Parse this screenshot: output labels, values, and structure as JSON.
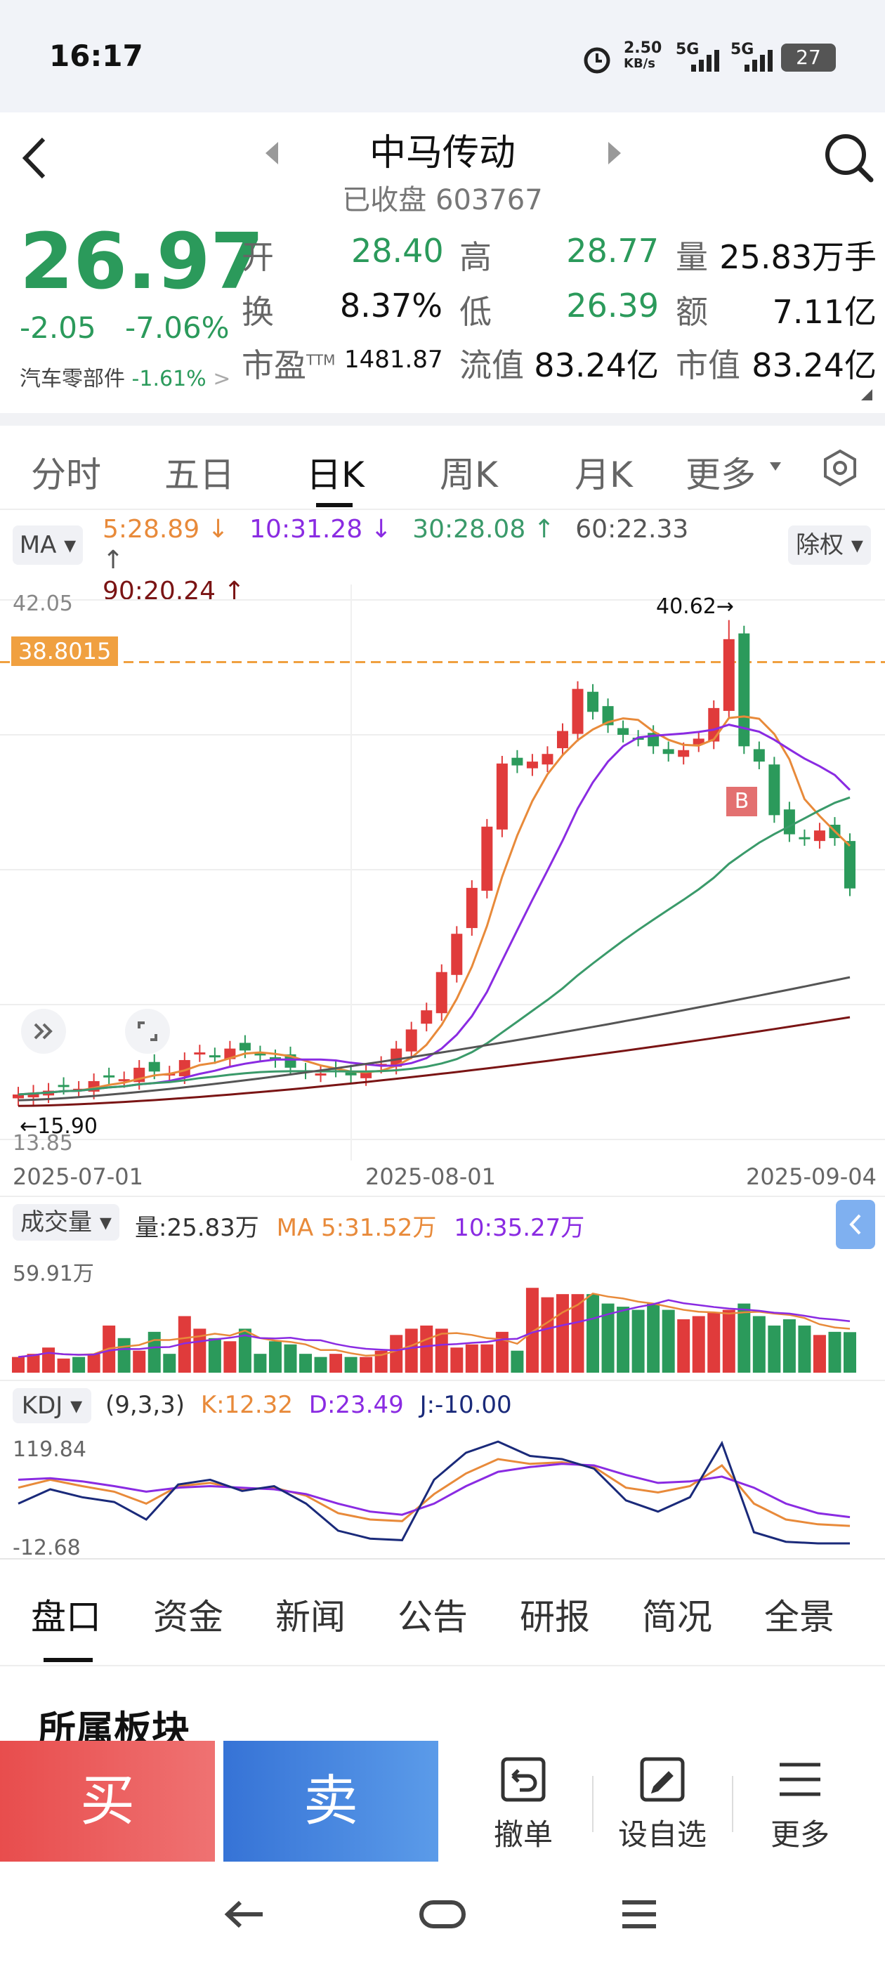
{
  "status": {
    "time": "16:17",
    "speed": "2.50",
    "speed_unit": "KB/s",
    "net1": "5G",
    "net2": "5G",
    "battery": "27"
  },
  "header": {
    "title": "中马传动",
    "state": "已收盘",
    "code": "603767"
  },
  "quote": {
    "price": "26.97",
    "change": "-2.05",
    "change_pct": "-7.06%",
    "sector": "汽车零部件",
    "sector_pct": "-1.61%",
    "open_label": "开",
    "open": "28.40",
    "high_label": "高",
    "high": "28.77",
    "vol_label": "量",
    "vol": "25.83万手",
    "turn_label": "换",
    "turn": "8.37%",
    "low_label": "低",
    "low": "26.39",
    "amt_label": "额",
    "amt": "7.11亿",
    "pe_label": "市盈",
    "pe_sup": "TTM",
    "pe": "1481.87",
    "float_label": "流值",
    "float": "83.24亿",
    "cap_label": "市值",
    "cap": "83.24亿"
  },
  "tabs": [
    "分时",
    "五日",
    "日K",
    "周K",
    "月K",
    "更多"
  ],
  "active_tab": "日K",
  "ma_bar": {
    "button": "MA",
    "ma5": "5:28.89 ↓",
    "ma10": "10:31.28 ↓",
    "ma30": "30:28.08 ↑",
    "ma60": "60:22.33 ↑",
    "ma90": "90:20.24 ↑",
    "adjust": "除权"
  },
  "colors": {
    "up": "#e03b3b",
    "down": "#2b9a5b",
    "ma5": "#e88a3a",
    "ma10": "#8a2be2",
    "ma30": "#3a9a6a",
    "ma60": "#555555",
    "ma90": "#7a1414",
    "accent": "#f0a040"
  },
  "kline_labels": {
    "top": "42.05",
    "bottom": "13.85",
    "marker": "38.8015",
    "max": "40.62→",
    "min": "←15.90",
    "b_mark": "B",
    "date1": "2025-07-01",
    "date2": "2025-08-01",
    "date3": "2025-09-04"
  },
  "volume": {
    "button": "成交量",
    "vol": "量:25.83万",
    "ma5": "MA 5:31.52万",
    "ma10": "10:35.27万",
    "max": "59.91万"
  },
  "kdj": {
    "button": "KDJ",
    "params": "(9,3,3)",
    "k": "K:12.32",
    "d": "D:23.49",
    "j": "J:-10.00",
    "top": "119.84",
    "bottom": "-12.68"
  },
  "bottom_tabs": [
    "盘口",
    "资金",
    "新闻",
    "公告",
    "研报",
    "简况",
    "全景"
  ],
  "section_title": "所属板块",
  "actions": {
    "buy": "买",
    "sell": "卖",
    "cancel": "撤单",
    "watch": "设自选",
    "more": "更多"
  },
  "chart_data": {
    "type": "candlestick",
    "x_range": [
      "2025-07-01",
      "2025-09-04"
    ],
    "ylim": [
      13.85,
      42.05
    ],
    "last_ma": {
      "ma5": 28.89,
      "ma10": 31.28,
      "ma30": 28.08,
      "ma60": 22.33,
      "ma90": 20.24
    },
    "high_marker": 40.62,
    "low_marker": 15.9
  }
}
